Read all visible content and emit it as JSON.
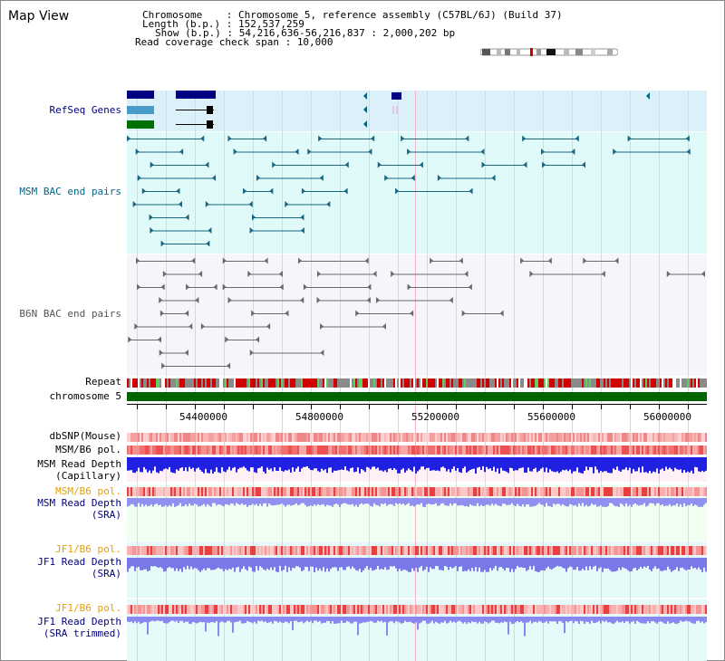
{
  "page": {
    "title": "Map View"
  },
  "header": {
    "chromosome_label": "Chromosome    : ",
    "chromosome_value": "Chromosome 5, reference assembly (C57BL/6J) (Build 37)",
    "length_label": "Length (b.p.) : ",
    "length_value": "152,537,259",
    "show_label": "Show (b.p.) : ",
    "show_value": "54,216,636-56,216,837 : 2,000,202 bp",
    "span_label": "Read coverage check span : ",
    "span_value": "10,000"
  },
  "tracks": {
    "refseq": "RefSeq Genes",
    "msm_bac": "MSM BAC end pairs",
    "b6n_bac": "B6N BAC end pairs",
    "repeat": "Repeat",
    "chromosome": "chromosome 5",
    "dbsnp": "dbSNP(Mouse)",
    "msm_b6_pol_1": "MSM/B6 pol.",
    "msm_depth_cap_1": "MSM Read Depth",
    "msm_depth_cap_2": "(Capillary)",
    "msm_b6_pol_2": "MSM/B6 pol.",
    "msm_depth_sra_1": "MSM Read Depth",
    "msm_depth_sra_2": "(SRA)",
    "jf1_b6_pol_1": "JF1/B6 pol.",
    "jf1_depth_sra_1": "JF1 Read Depth",
    "jf1_depth_sra_2": "(SRA)",
    "jf1_b6_pol_2": "JF1/B6 pol.",
    "jf1_depth_trim_1": "JF1 Read Depth",
    "jf1_depth_trim_2": "(SRA trimmed)"
  },
  "axis": {
    "ticks": [
      "54400000",
      "54800000",
      "55200000",
      "55600000",
      "56000000"
    ]
  },
  "colors": {
    "refseq_bg": "#dcf0fa",
    "msm_bg": "#e0fafa",
    "b6n_bg": "#f5f5fa",
    "msm_pol_bg": "#fff0f5",
    "sra_bg": "#f0fff0",
    "jf1_bg": "#e6fafa",
    "navy": "#000080",
    "orange": "#e8a000",
    "teal": "#006688",
    "bac_teal": "#1a6680",
    "bac_gray": "#6a6a6a",
    "chrom_green": "#006400"
  }
}
